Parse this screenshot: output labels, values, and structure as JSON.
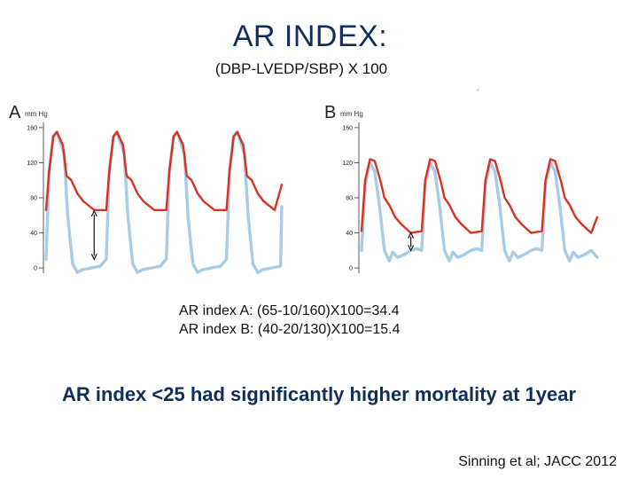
{
  "slide": {
    "title": "AR INDEX:",
    "formula": "(DBP-LVEDP/SBP) X 100",
    "results": [
      "AR index A: (65-10/160)X100=34.4",
      "AR index B: (40-20/130)X100=15.4"
    ],
    "conclusion": "AR index <25 had significantly higher mortality at 1year",
    "citation": "Sinning et al; JACC 2012"
  },
  "colors": {
    "aortic_pressure": "#d9321f",
    "lv_pressure": "#a8cbe6",
    "arrow": "#111111",
    "title": "#0f2f5a"
  },
  "chart_data": [
    {
      "type": "line",
      "panel": "A",
      "unit_label": "mm Hg",
      "y_ticks": [
        0,
        40,
        80,
        120,
        160
      ],
      "ylim": [
        -10,
        170
      ],
      "series": [
        {
          "color": "#d9321f",
          "x": [
            0,
            0.05,
            0.12,
            0.18,
            0.28,
            0.34,
            0.42,
            0.52,
            0.62,
            0.8,
            1.0,
            1.05,
            1.12,
            1.18,
            1.28,
            1.34,
            1.42,
            1.52,
            1.62,
            1.8,
            2.0,
            2.05,
            2.12,
            2.18,
            2.28,
            2.34,
            2.42,
            2.52,
            2.62,
            2.8,
            3.0,
            3.05,
            3.12,
            3.18,
            3.28,
            3.34,
            3.42,
            3.52,
            3.62,
            3.8,
            3.92
          ],
          "y": [
            66,
            110,
            150,
            155,
            140,
            105,
            100,
            85,
            76,
            66,
            66,
            110,
            150,
            155,
            140,
            105,
            100,
            85,
            76,
            66,
            66,
            110,
            150,
            155,
            140,
            105,
            100,
            85,
            76,
            66,
            66,
            110,
            150,
            155,
            140,
            105,
            100,
            85,
            76,
            66,
            95
          ]
        },
        {
          "color": "#a8cbe6",
          "x": [
            0,
            0.05,
            0.12,
            0.18,
            0.3,
            0.36,
            0.44,
            0.52,
            0.6,
            0.75,
            0.9,
            1.0,
            1.05,
            1.12,
            1.18,
            1.3,
            1.36,
            1.44,
            1.52,
            1.6,
            1.75,
            1.9,
            2.0,
            2.05,
            2.12,
            2.18,
            2.3,
            2.36,
            2.44,
            2.52,
            2.6,
            2.75,
            2.9,
            3.0,
            3.05,
            3.12,
            3.18,
            3.3,
            3.36,
            3.44,
            3.52,
            3.6,
            3.75,
            3.9,
            3.92
          ],
          "y": [
            10,
            110,
            150,
            155,
            130,
            60,
            5,
            -5,
            -2,
            0,
            2,
            10,
            110,
            150,
            155,
            130,
            60,
            5,
            -5,
            -2,
            0,
            2,
            10,
            110,
            150,
            155,
            130,
            60,
            5,
            -5,
            -2,
            0,
            2,
            10,
            110,
            150,
            155,
            130,
            60,
            5,
            -5,
            -2,
            0,
            2,
            70
          ]
        }
      ],
      "arrow_at_x": 0.8,
      "arrow_y": [
        65,
        10
      ]
    },
    {
      "type": "line",
      "panel": "B",
      "unit_label": "mm Hg",
      "y_ticks": [
        0,
        40,
        80,
        120,
        160
      ],
      "ylim": [
        -10,
        170
      ],
      "series": [
        {
          "color": "#d9321f",
          "x": [
            0,
            0.06,
            0.14,
            0.22,
            0.32,
            0.38,
            0.46,
            0.56,
            0.66,
            0.82,
            1.0,
            1.06,
            1.14,
            1.22,
            1.32,
            1.38,
            1.46,
            1.56,
            1.66,
            1.82,
            2.0,
            2.06,
            2.14,
            2.22,
            2.32,
            2.38,
            2.46,
            2.56,
            2.66,
            2.82,
            3.0,
            3.06,
            3.14,
            3.22,
            3.32,
            3.38,
            3.46,
            3.56,
            3.66,
            3.82,
            3.92
          ],
          "y": [
            42,
            100,
            124,
            122,
            98,
            80,
            72,
            58,
            50,
            40,
            42,
            100,
            124,
            122,
            98,
            80,
            72,
            58,
            50,
            40,
            42,
            100,
            124,
            122,
            98,
            80,
            72,
            58,
            50,
            40,
            42,
            100,
            124,
            122,
            98,
            80,
            72,
            58,
            50,
            40,
            58
          ]
        },
        {
          "color": "#a8cbe6",
          "x": [
            0,
            0.06,
            0.14,
            0.22,
            0.3,
            0.38,
            0.46,
            0.52,
            0.6,
            0.7,
            0.82,
            0.92,
            1.0,
            1.06,
            1.14,
            1.22,
            1.3,
            1.38,
            1.46,
            1.52,
            1.6,
            1.7,
            1.82,
            1.92,
            2.0,
            2.06,
            2.14,
            2.22,
            2.3,
            2.38,
            2.46,
            2.52,
            2.6,
            2.7,
            2.82,
            2.92,
            3.0,
            3.06,
            3.14,
            3.22,
            3.3,
            3.38,
            3.46,
            3.52,
            3.6,
            3.7,
            3.82,
            3.92
          ],
          "y": [
            20,
            95,
            120,
            110,
            70,
            20,
            8,
            18,
            12,
            15,
            20,
            22,
            20,
            95,
            120,
            110,
            70,
            20,
            8,
            18,
            12,
            15,
            20,
            22,
            20,
            95,
            120,
            110,
            70,
            20,
            8,
            18,
            12,
            15,
            20,
            22,
            20,
            95,
            120,
            110,
            70,
            20,
            8,
            18,
            12,
            15,
            20,
            12
          ]
        }
      ],
      "arrow_at_x": 0.82,
      "arrow_y": [
        40,
        20
      ]
    }
  ]
}
